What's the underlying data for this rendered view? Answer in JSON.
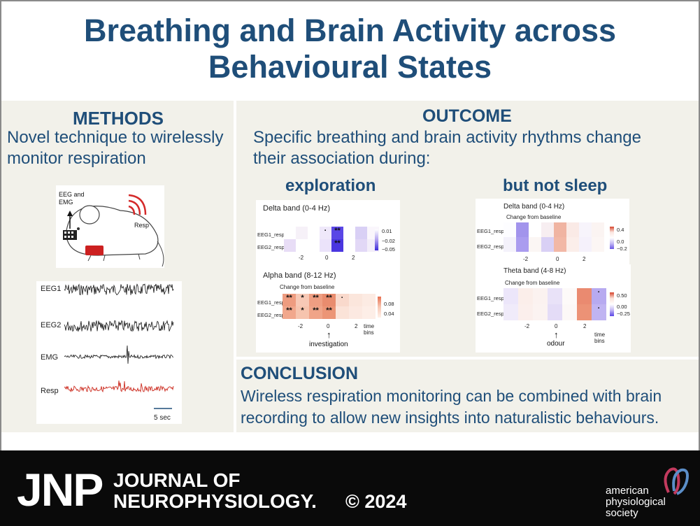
{
  "title": {
    "line1": "Breathing and Brain Activity across",
    "line2": "Behavioural States"
  },
  "methods": {
    "heading": "METHODS",
    "text_line1": "Novel technique to wirelessly",
    "text_line2": "monitor respiration",
    "mouse": {
      "label_eeg_line1": "EEG and",
      "label_eeg_line2": "EMG",
      "label_resp": "Resp"
    },
    "traces": {
      "labels": [
        "EEG1",
        "EEG2",
        "EMG",
        "Resp"
      ],
      "scale_label": "5 sec",
      "resp_color": "#cc2a1e"
    }
  },
  "outcome": {
    "heading": "OUTCOME",
    "text_line1": "Specific breathing and brain activity rhythms change",
    "text_line2": "their association during:",
    "exploration": {
      "heading": "exploration",
      "delta": {
        "title": "Delta band (0-4 Hz)",
        "rows": [
          "EEG1_resp",
          "EEG2_resp"
        ],
        "stars_row1": [
          "",
          "",
          "",
          "·",
          "**",
          "",
          "",
          ""
        ],
        "stars_row2": [
          "",
          "",
          "",
          "",
          "**",
          "",
          "",
          ""
        ],
        "ticks": [
          "-2",
          "0",
          "2"
        ],
        "legend": [
          "0.01",
          "−0.02",
          "−0.05"
        ]
      },
      "alpha": {
        "title": "Alpha band (8-12 Hz)",
        "subtitle": "Change from baseline",
        "rows": [
          "EEG1_resp",
          "EEG2_resp"
        ],
        "stars_row1": [
          "**",
          "*",
          "**",
          "**",
          "·",
          "",
          ""
        ],
        "stars_row2": [
          "**",
          "*",
          "**",
          "**",
          "",
          "",
          ""
        ],
        "ticks": [
          "-2",
          "0",
          "2"
        ],
        "xlabel": "time bins",
        "legend": [
          "0.08",
          "0.04"
        ],
        "event": "investigation"
      }
    },
    "sleep": {
      "heading": "but not sleep",
      "delta": {
        "title": "Delta band (0-4 Hz)",
        "subtitle": "Change from baseline",
        "rows": [
          "EEG1_resp",
          "EEG2_resp"
        ],
        "ticks": [
          "-2",
          "0",
          "2"
        ],
        "legend": [
          "0.4",
          "0.0",
          "−0.2"
        ]
      },
      "theta": {
        "title": "Theta band (4-8 Hz)",
        "subtitle": "Change from baseline",
        "rows": [
          "EEG1_resp",
          "EEG2_resp"
        ],
        "stars_row1": [
          "",
          "",
          "",
          "",
          "",
          "",
          "·"
        ],
        "stars_row2": [
          "",
          "",
          "",
          "",
          "",
          "",
          "·"
        ],
        "ticks": [
          "-2",
          "0",
          "2"
        ],
        "xlabel": "time bins",
        "legend": [
          "0.50",
          "0.00",
          "−0.25"
        ],
        "event": "odour"
      }
    }
  },
  "conclusion": {
    "heading": "CONCLUSION",
    "text_line1": "Wireless respiration monitoring can be combined with brain",
    "text_line2": "recording to allow new insights into naturalistic behaviours."
  },
  "footer": {
    "jnp": "JNP",
    "journal_line1": "JOURNAL OF",
    "journal_line2": "NEUROPHYSIOLOGY.",
    "copyright": "© 2024",
    "aps_line1": "american",
    "aps_line2": "physiological",
    "aps_line3": "society"
  },
  "colors": {
    "title": "#1f4e79",
    "panel": "#f2f1ea",
    "footer": "#0a0a0a"
  }
}
